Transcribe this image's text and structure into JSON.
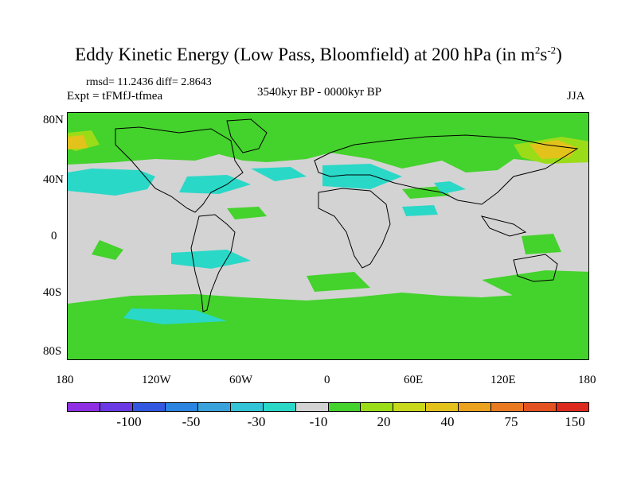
{
  "title": {
    "main": "Eddy Kinetic Energy (Low Pass, Bloomfield) at 200 hPa (in m",
    "sup1": "2",
    "mid": "s",
    "sup2": "-2",
    "close": ")"
  },
  "stats": "rmsd= 11.2436 diff= 2.8643",
  "expt": "Expt = tFMfJ-tfmea",
  "period": "3540kyr BP - 0000kyr BP",
  "season": "JJA",
  "lat_labels": [
    "80N",
    "40N",
    "0",
    "40S",
    "80S"
  ],
  "lon_labels": [
    "180",
    "120W",
    "60W",
    "0",
    "60E",
    "120E",
    "180"
  ],
  "colorbar": {
    "colors": [
      "#8f2fe3",
      "#6a3ae5",
      "#3257e0",
      "#2a84e0",
      "#3aa3dc",
      "#33c4d8",
      "#2ad8c8",
      "#d3d3d3",
      "#44d22c",
      "#9bdc18",
      "#c8d81a",
      "#e3c21c",
      "#eba21e",
      "#ea7a22",
      "#e45222",
      "#dc2a1e"
    ],
    "labels": [
      "-100",
      "-50",
      "-30",
      "-10",
      "20",
      "40",
      "75",
      "150"
    ]
  },
  "colors": {
    "background": "#d3d3d3",
    "positive_low": "#44d22c",
    "negative_low": "#2ad8c8",
    "positive_mid": "#9bdc18",
    "positive_high": "#e3c21c"
  }
}
